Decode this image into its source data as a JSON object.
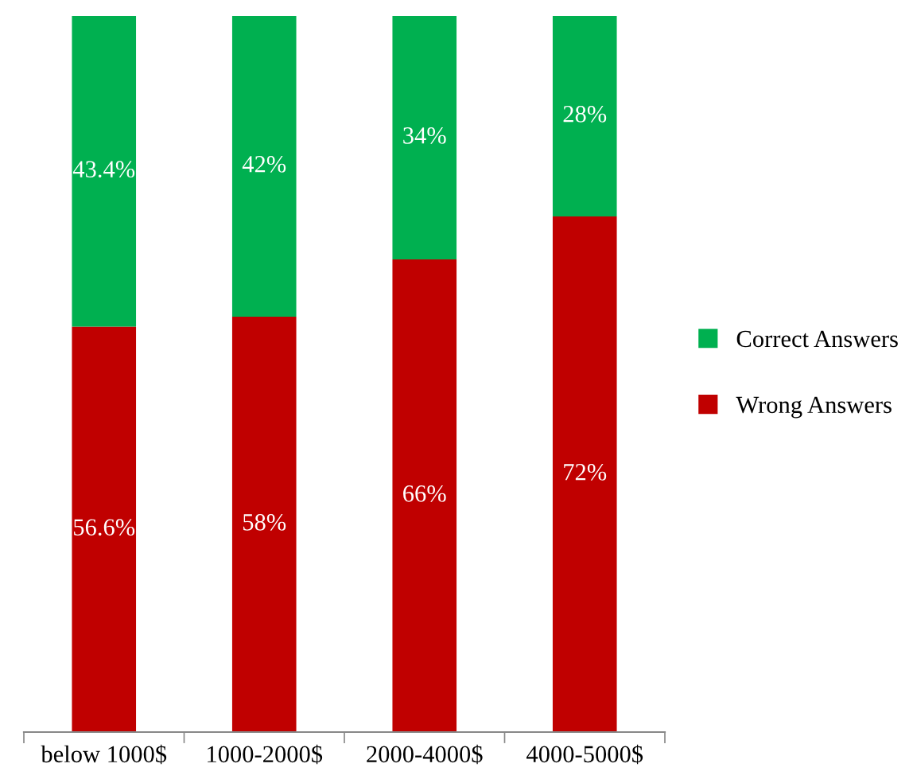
{
  "chart_data": {
    "type": "bar",
    "stacked": true,
    "categories": [
      "below 1000$",
      "1000-2000$",
      "2000-4000$",
      "4000-5000$"
    ],
    "series": [
      {
        "name": "Wrong Answers",
        "color": "#c00000",
        "values": [
          56.6,
          58,
          66,
          72
        ],
        "value_labels": [
          "56.6%",
          "58%",
          "66%",
          "72%"
        ]
      },
      {
        "name": "Correct Answers",
        "color": "#00b050",
        "values": [
          43.4,
          42,
          34,
          28
        ],
        "value_labels": [
          "43.4%",
          "42%",
          "34%",
          "28%"
        ]
      }
    ],
    "legend": "right",
    "grid": false
  }
}
